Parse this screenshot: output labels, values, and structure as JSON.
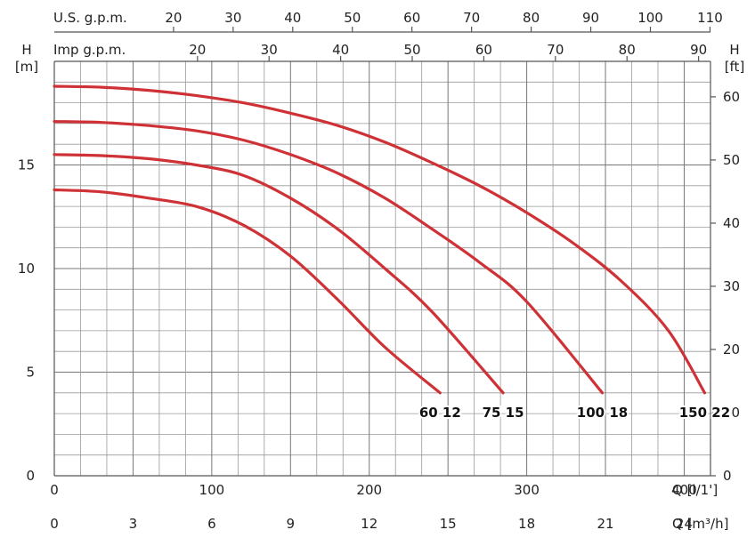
{
  "chart_data": {
    "type": "line",
    "colors": {
      "curve": "#cf3236"
    },
    "x_axis": {
      "label": "Q [l/1']",
      "range": [
        0,
        416.7
      ],
      "ticks": [
        0,
        100,
        200,
        300,
        400
      ]
    },
    "x_axis_secondary": {
      "label": "Q [m³/h]",
      "range": [
        0,
        25
      ],
      "ticks": [
        0,
        3,
        6,
        9,
        12,
        15,
        18,
        21,
        24
      ]
    },
    "top_axis_us": {
      "label": "U.S. g.p.m.",
      "ticks": [
        20,
        30,
        40,
        50,
        60,
        70,
        80,
        90,
        100,
        110
      ]
    },
    "top_axis_imp": {
      "label": "Imp g.p.m.",
      "ticks": [
        20,
        30,
        40,
        50,
        60,
        70,
        80,
        90
      ]
    },
    "y_axis_left": {
      "title": "H",
      "unit": "[m]",
      "range": [
        0,
        20
      ],
      "ticks": [
        0,
        5,
        10,
        15
      ]
    },
    "y_axis_right": {
      "title": "H",
      "unit": "[ft]",
      "ticks": [
        0,
        10,
        20,
        30,
        40,
        50,
        60
      ]
    },
    "grid": true,
    "series": [
      {
        "name": "60 12",
        "x": [
          0,
          30,
          60,
          90,
          120,
          150,
          180,
          210,
          245
        ],
        "y": [
          13.8,
          13.7,
          13.4,
          13.0,
          12.1,
          10.6,
          8.5,
          6.2,
          4.0
        ]
      },
      {
        "name": "75 15",
        "x": [
          0,
          30,
          60,
          90,
          120,
          150,
          180,
          210,
          240,
          285
        ],
        "y": [
          15.5,
          15.45,
          15.3,
          15.0,
          14.5,
          13.4,
          11.9,
          10.0,
          7.9,
          4.0
        ]
      },
      {
        "name": "100 18",
        "x": [
          0,
          30,
          60,
          90,
          120,
          150,
          180,
          210,
          240,
          270,
          300,
          348
        ],
        "y": [
          17.1,
          17.05,
          16.9,
          16.65,
          16.2,
          15.5,
          14.6,
          13.4,
          11.9,
          10.3,
          8.4,
          4.0
        ]
      },
      {
        "name": "150 22",
        "x": [
          0,
          30,
          60,
          90,
          120,
          150,
          180,
          210,
          240,
          270,
          300,
          330,
          360,
          390,
          413
        ],
        "y": [
          18.8,
          18.75,
          18.6,
          18.35,
          18.0,
          17.5,
          16.9,
          16.1,
          15.1,
          14.0,
          12.7,
          11.2,
          9.4,
          7.0,
          4.0
        ]
      }
    ]
  }
}
